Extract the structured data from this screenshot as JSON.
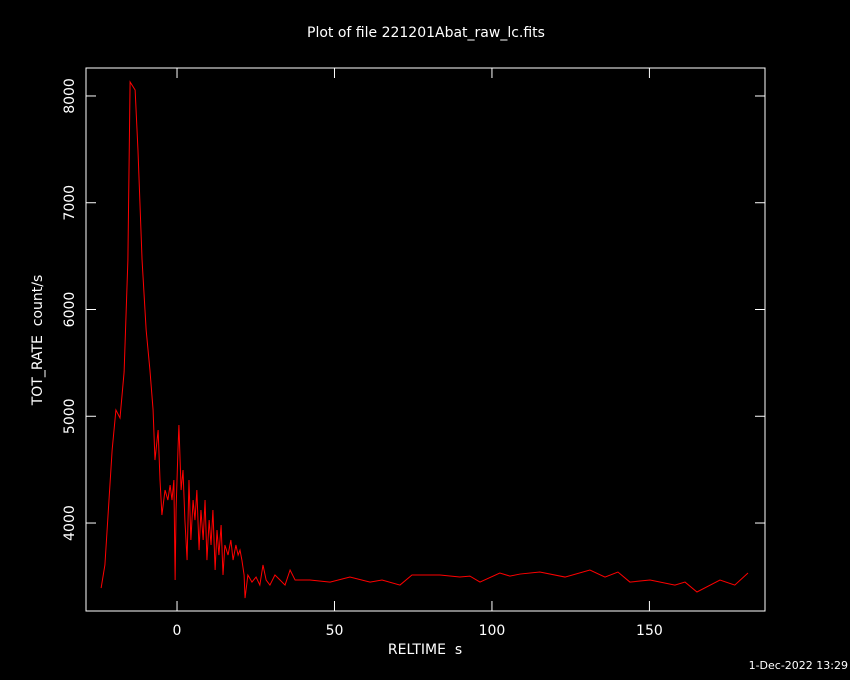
{
  "chart_data": {
    "type": "line",
    "title": "Plot of file 221201Abat_raw_lc.fits",
    "x_label": "RELTIME  s",
    "y_label": "TOT_RATE  count/s",
    "footer": "1-Dec-2022 13:29",
    "color": "#ff0000",
    "xlim": [
      -28.9,
      186.7
    ],
    "ylim": [
      3176,
      8262
    ],
    "xticks": [
      0,
      50,
      100,
      150
    ],
    "yticks": [
      4000,
      5000,
      6000,
      7000,
      8000
    ],
    "x": [
      -24.1,
      -22.9,
      -20.6,
      -19.4,
      -18.1,
      -16.8,
      -15.6,
      -14.9,
      -13.3,
      -12.4,
      -11.1,
      -9.8,
      -8.6,
      -7.6,
      -7.0,
      -6.0,
      -5.4,
      -4.8,
      -3.8,
      -2.9,
      -2.2,
      -1.6,
      -1.0,
      -0.6,
      -0.3,
      0.3,
      0.6,
      1.3,
      1.9,
      2.5,
      3.2,
      3.8,
      4.4,
      5.1,
      5.7,
      6.3,
      7.0,
      7.6,
      8.3,
      8.9,
      9.5,
      10.2,
      10.8,
      11.4,
      12.1,
      12.7,
      13.3,
      14.0,
      14.6,
      15.2,
      16.2,
      17.1,
      17.8,
      18.7,
      19.4,
      20.0,
      20.6,
      21.3,
      21.6,
      22.5,
      23.8,
      25.1,
      26.3,
      27.3,
      28.3,
      29.5,
      31.1,
      32.7,
      34.3,
      35.9,
      37.5,
      42.2,
      48.6,
      54.9,
      61.3,
      65.1,
      70.8,
      74.6,
      83.5,
      89.8,
      93.0,
      96.2,
      102.5,
      105.7,
      108.9,
      115.2,
      123.2,
      131.1,
      135.9,
      140.0,
      143.8,
      150.2,
      158.1,
      161.3,
      165.1,
      172.4,
      177.1,
      181.3
    ],
    "values": [
      3391,
      3607,
      4684,
      5059,
      4984,
      5415,
      6464,
      8131,
      8056,
      7494,
      6464,
      5808,
      5433,
      5059,
      4590,
      4871,
      4403,
      4075,
      4309,
      4215,
      4356,
      4215,
      4403,
      3466,
      4122,
      4684,
      4918,
      4309,
      4496,
      4028,
      3653,
      4403,
      3841,
      4215,
      4028,
      4309,
      3747,
      4122,
      3841,
      4215,
      3653,
      4028,
      3794,
      4122,
      3560,
      3934,
      3700,
      3981,
      3513,
      3794,
      3700,
      3841,
      3653,
      3794,
      3700,
      3747,
      3653,
      3513,
      3297,
      3513,
      3447,
      3494,
      3419,
      3607,
      3466,
      3419,
      3513,
      3466,
      3419,
      3560,
      3466,
      3466,
      3447,
      3494,
      3447,
      3466,
      3419,
      3513,
      3513,
      3494,
      3503,
      3447,
      3532,
      3503,
      3522,
      3541,
      3494,
      3560,
      3494,
      3541,
      3447,
      3466,
      3419,
      3447,
      3354,
      3466,
      3419,
      3532
    ]
  }
}
